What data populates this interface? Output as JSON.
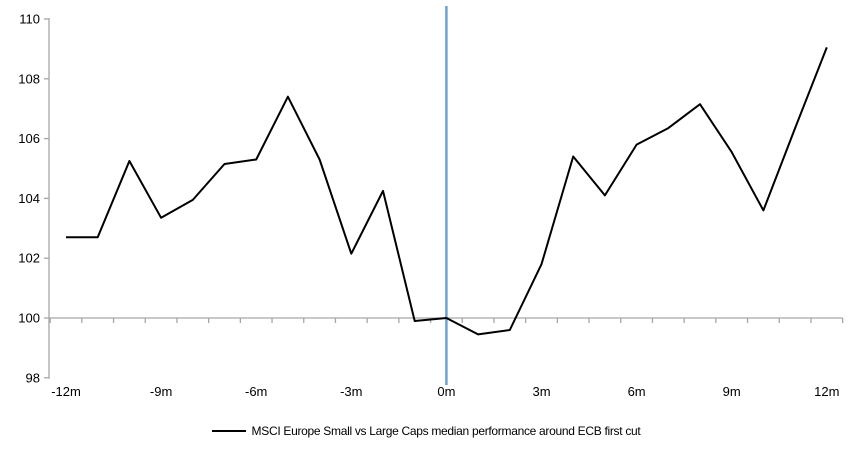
{
  "chart_data": {
    "type": "line",
    "title": "",
    "x": [
      -12,
      -11,
      -10,
      -9,
      -8,
      -7,
      -6,
      -5,
      -4,
      -3,
      -2,
      -1,
      0,
      1,
      2,
      3,
      4,
      5,
      6,
      7,
      8,
      9,
      10,
      11,
      12
    ],
    "series": [
      {
        "name": "MSCI Europe Small vs Large Caps median performance around ECB first cut",
        "color": "#000000",
        "values": [
          102.7,
          102.7,
          105.25,
          103.35,
          103.95,
          105.15,
          105.3,
          107.4,
          105.3,
          102.15,
          104.25,
          99.9,
          100.0,
          99.45,
          99.6,
          101.8,
          105.4,
          104.1,
          105.8,
          106.35,
          107.15,
          105.55,
          103.6,
          106.35,
          109.05
        ]
      }
    ],
    "xlabel": "",
    "ylabel": "",
    "ylim": [
      98,
      110
    ],
    "y_ticks": [
      98,
      100,
      102,
      104,
      106,
      108,
      110
    ],
    "x_tick_positions": [
      -12,
      -9,
      -6,
      -3,
      0,
      3,
      6,
      9,
      12
    ],
    "x_tick_labels": [
      "-12m",
      "-9m",
      "-6m",
      "-3m",
      "0m",
      "3m",
      "6m",
      "9m",
      "12m"
    ],
    "grid": "off",
    "baseline_y": 100,
    "event_line_x": 0,
    "legend_position": "bottom-center"
  },
  "colors": {
    "series_line": "#000000",
    "event_line": "#6FA2D4",
    "axis": "#A6A6A6",
    "text": "#000000",
    "background": "#FFFFFF"
  }
}
